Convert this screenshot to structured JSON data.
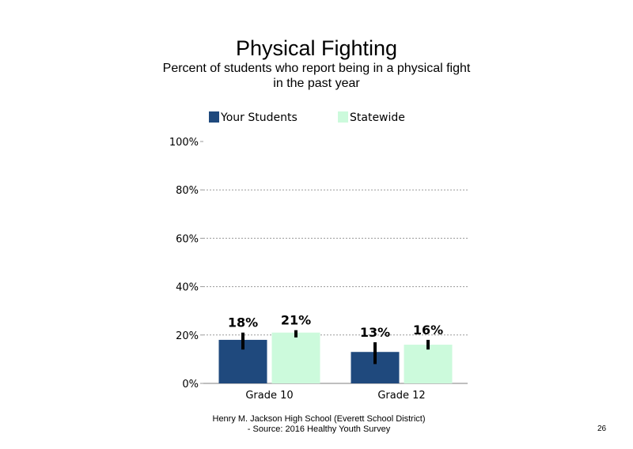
{
  "chart_data": {
    "type": "bar",
    "title": "Physical Fighting",
    "subtitle_lines": [
      "Percent of students  who report being in a physical fight",
      "in the past year"
    ],
    "categories": [
      "Grade 10",
      "Grade 12"
    ],
    "series": [
      {
        "name": "Your Students",
        "color": "#1f497d",
        "values": [
          18,
          13
        ],
        "labels": [
          "18%",
          "13%"
        ],
        "error_low": [
          14,
          8
        ],
        "error_high": [
          21,
          17
        ]
      },
      {
        "name": "Statewide",
        "color": "#ccfadc",
        "values": [
          21,
          16
        ],
        "labels": [
          "21%",
          "16%"
        ],
        "error_low": [
          19,
          14
        ],
        "error_high": [
          22,
          18
        ]
      }
    ],
    "yticks": [
      "0%",
      "20%",
      "40%",
      "60%",
      "80%",
      "100%"
    ],
    "ylim": [
      0,
      100
    ],
    "grid": true,
    "legend_position": "top"
  },
  "footer": {
    "line1": "Henry M.  Jackson High  School (Everett School District)",
    "line2": "- Source: 2016 Healthy  Youth Survey"
  },
  "page_number": "26"
}
